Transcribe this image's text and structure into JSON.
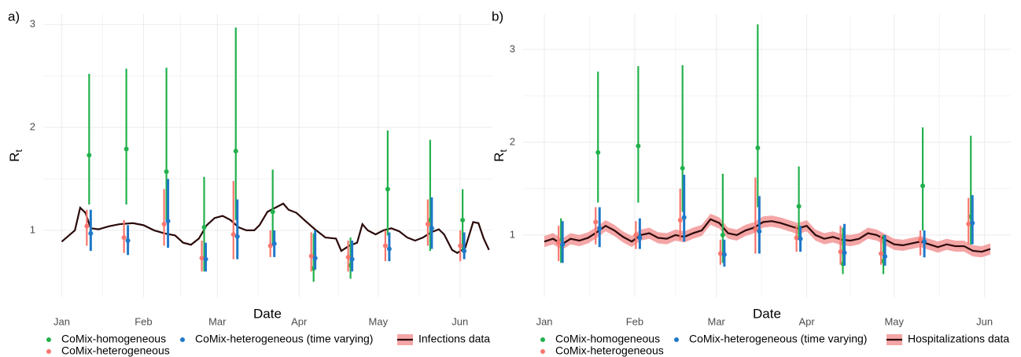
{
  "chart_data": [
    {
      "type": "errorbar",
      "label": "a)",
      "xlabel": "Date",
      "ylabel": {
        "base": "R",
        "sub": "t"
      },
      "xlim": [
        -7,
        163
      ],
      "ylim": [
        0.35,
        3.1
      ],
      "yticks": [
        1,
        2,
        3
      ],
      "xticks": [
        {
          "value": 0,
          "label": "Jan"
        },
        {
          "value": 31,
          "label": "Feb"
        },
        {
          "value": 59,
          "label": "Mar"
        },
        {
          "value": 90,
          "label": "Apr"
        },
        {
          "value": 120,
          "label": "May"
        },
        {
          "value": 151,
          "label": "Jun"
        }
      ],
      "grid": true,
      "x": [
        10.4,
        24.5,
        39.7,
        54,
        66,
        80,
        95.5,
        109.5,
        123.6,
        139.7,
        152
      ],
      "series": [
        {
          "name": "CoMix-homogeneous",
          "color": "#22b14c",
          "values": [
            1.73,
            1.79,
            1.57,
            1.03,
            1.77,
            1.18,
            0.63,
            0.66,
            1.4,
            1.1,
            1.1
          ],
          "lower": [
            1.25,
            1.25,
            1.1,
            0.6,
            1.1,
            0.85,
            0.5,
            0.53,
            0.95,
            0.8,
            0.8
          ],
          "upper": [
            2.52,
            2.57,
            2.58,
            1.52,
            2.97,
            1.59,
            0.97,
            0.93,
            1.97,
            1.88,
            1.4
          ]
        },
        {
          "name": "CoMix-heterogeneous",
          "color": "#f8766d",
          "values": [
            1.04,
            0.93,
            1.06,
            0.73,
            0.96,
            0.85,
            0.75,
            0.74,
            0.85,
            1.06,
            0.85
          ],
          "lower": [
            0.85,
            0.78,
            0.85,
            0.6,
            0.72,
            0.74,
            0.6,
            0.6,
            0.7,
            0.85,
            0.7
          ],
          "upper": [
            1.2,
            1.1,
            1.4,
            0.9,
            1.48,
            1.0,
            0.98,
            0.9,
            1.0,
            1.3,
            1.0
          ]
        },
        {
          "name": "CoMix-heterogeneous (time varying)",
          "color": "#1f78c8",
          "values": [
            0.97,
            0.9,
            1.09,
            0.72,
            0.94,
            0.87,
            0.73,
            0.72,
            0.82,
            1.02,
            0.8
          ],
          "lower": [
            0.8,
            0.76,
            0.83,
            0.6,
            0.72,
            0.74,
            0.62,
            0.6,
            0.7,
            0.82,
            0.72
          ],
          "upper": [
            1.2,
            1.05,
            1.5,
            0.88,
            1.3,
            1.0,
            1.0,
            0.9,
            0.98,
            1.32,
            0.98
          ]
        }
      ],
      "line": {
        "name": "Infections data",
        "color": "#2b0a0a",
        "band_color": "#f08080",
        "x": [
          0,
          5,
          7,
          9,
          11,
          14,
          18,
          22,
          27,
          31,
          35,
          39,
          43,
          46,
          49,
          52,
          55,
          58,
          61,
          64,
          67,
          70,
          73,
          75,
          78,
          81,
          84,
          86,
          89,
          92,
          96,
          100,
          104,
          106,
          109,
          112,
          114,
          116,
          119,
          122,
          125,
          128,
          131,
          134,
          137,
          140,
          143,
          145,
          148,
          150,
          153,
          156,
          158,
          160,
          162
        ],
        "values": [
          0.89,
          1.0,
          1.22,
          1.17,
          1.02,
          1.01,
          1.04,
          1.06,
          1.07,
          1.05,
          1.0,
          0.97,
          0.95,
          0.88,
          0.86,
          0.92,
          1.05,
          1.12,
          1.14,
          1.1,
          1.03,
          1.0,
          1.0,
          1.05,
          1.18,
          1.22,
          1.26,
          1.2,
          1.17,
          1.1,
          1.01,
          0.93,
          0.92,
          0.8,
          0.85,
          0.88,
          1.06,
          1.0,
          0.96,
          1.0,
          1.02,
          0.99,
          0.93,
          0.9,
          0.93,
          0.98,
          1.01,
          0.96,
          0.81,
          0.78,
          0.83,
          1.08,
          1.07,
          0.92,
          0.81
        ]
      }
    },
    {
      "type": "errorbar",
      "label": "b)",
      "xlabel": "Date",
      "ylabel": {
        "base": "R",
        "sub": "t"
      },
      "xlim": [
        -7.3,
        160
      ],
      "ylim": [
        0.33,
        3.38
      ],
      "yticks": [
        1,
        2,
        3
      ],
      "xticks": [
        {
          "value": 0,
          "label": "Jan"
        },
        {
          "value": 31,
          "label": "Feb"
        },
        {
          "value": 59,
          "label": "Mar"
        },
        {
          "value": 90,
          "label": "Apr"
        },
        {
          "value": 120,
          "label": "May"
        },
        {
          "value": 151,
          "label": "Jun"
        }
      ],
      "grid": true,
      "x": [
        5.7,
        18.4,
        32.2,
        47.4,
        61.2,
        73.2,
        87.3,
        102.4,
        116.3,
        129.8,
        146.3
      ],
      "series": [
        {
          "name": "CoMix-homogeneous",
          "color": "#22b14c",
          "values": [
            0.93,
            1.89,
            1.96,
            1.72,
            1.0,
            1.94,
            1.31,
            0.69,
            0.72,
            1.53,
            1.2
          ],
          "lower": [
            0.7,
            1.35,
            1.35,
            1.25,
            0.7,
            1.3,
            0.95,
            0.58,
            0.58,
            1.05,
            0.9
          ],
          "upper": [
            1.18,
            2.76,
            2.82,
            2.83,
            1.66,
            3.27,
            1.74,
            1.08,
            1.0,
            2.16,
            2.07
          ]
        },
        {
          "name": "CoMix-heterogeneous",
          "color": "#f8766d",
          "values": [
            0.92,
            1.14,
            1.0,
            1.16,
            0.8,
            1.06,
            0.97,
            0.82,
            0.8,
            0.95,
            1.12
          ],
          "lower": [
            0.72,
            0.9,
            0.85,
            0.95,
            0.68,
            0.8,
            0.82,
            0.68,
            0.68,
            0.78,
            0.9
          ],
          "upper": [
            1.1,
            1.3,
            1.15,
            1.5,
            0.95,
            1.62,
            1.1,
            1.1,
            1.0,
            1.05,
            1.4
          ]
        },
        {
          "name": "CoMix-heterogeneous (time varying)",
          "color": "#1f78c8",
          "values": [
            0.9,
            1.07,
            0.97,
            1.19,
            0.79,
            1.04,
            0.96,
            0.81,
            0.77,
            0.93,
            1.13
          ],
          "lower": [
            0.7,
            0.87,
            0.85,
            0.93,
            0.66,
            0.8,
            0.82,
            0.67,
            0.67,
            0.76,
            0.9
          ],
          "upper": [
            1.15,
            1.3,
            1.18,
            1.65,
            0.95,
            1.42,
            1.1,
            1.12,
            1.0,
            1.05,
            1.43
          ]
        }
      ],
      "line": {
        "name": "Hospitalizations data",
        "color": "#2b0a0a",
        "band_color": "#f08080",
        "x": [
          0,
          3,
          6,
          9,
          12,
          15,
          18,
          21,
          24,
          27,
          30,
          33,
          36,
          39,
          42,
          45,
          48,
          51,
          54,
          57,
          60,
          63,
          66,
          69,
          72,
          75,
          78,
          81,
          84,
          87,
          90,
          93,
          96,
          99,
          102,
          105,
          108,
          111,
          114,
          117,
          120,
          123,
          126,
          129,
          132,
          135,
          138,
          141,
          144,
          147,
          150,
          153
        ],
        "values": [
          0.93,
          0.96,
          0.9,
          0.96,
          0.94,
          0.97,
          1.03,
          1.1,
          1.05,
          0.98,
          0.93,
          1.0,
          1.02,
          0.97,
          0.96,
          1.0,
          0.98,
          1.02,
          1.05,
          1.17,
          1.13,
          1.02,
          1.0,
          1.05,
          1.08,
          1.14,
          1.15,
          1.13,
          1.1,
          1.07,
          1.1,
          1.0,
          0.96,
          0.98,
          0.95,
          0.94,
          0.96,
          1.02,
          1.0,
          0.95,
          0.9,
          0.89,
          0.91,
          0.93,
          0.9,
          0.87,
          0.9,
          0.88,
          0.88,
          0.83,
          0.82,
          0.85
        ],
        "lower": [
          0.87,
          0.9,
          0.84,
          0.9,
          0.88,
          0.91,
          0.97,
          1.04,
          0.99,
          0.92,
          0.87,
          0.94,
          0.96,
          0.91,
          0.9,
          0.94,
          0.92,
          0.96,
          0.99,
          1.11,
          1.07,
          0.96,
          0.94,
          0.99,
          1.02,
          1.08,
          1.09,
          1.07,
          1.04,
          1.01,
          1.04,
          0.94,
          0.9,
          0.92,
          0.89,
          0.88,
          0.9,
          0.96,
          0.94,
          0.89,
          0.84,
          0.83,
          0.85,
          0.87,
          0.84,
          0.81,
          0.84,
          0.82,
          0.82,
          0.77,
          0.76,
          0.79
        ],
        "upper": [
          0.99,
          1.02,
          0.96,
          1.02,
          1.0,
          1.03,
          1.09,
          1.16,
          1.11,
          1.04,
          0.99,
          1.06,
          1.08,
          1.03,
          1.02,
          1.06,
          1.04,
          1.08,
          1.11,
          1.23,
          1.19,
          1.08,
          1.06,
          1.11,
          1.14,
          1.2,
          1.21,
          1.19,
          1.16,
          1.13,
          1.16,
          1.06,
          1.02,
          1.04,
          1.01,
          1.0,
          1.02,
          1.08,
          1.06,
          1.01,
          0.96,
          0.95,
          0.97,
          0.99,
          0.96,
          0.93,
          0.96,
          0.94,
          0.94,
          0.89,
          0.88,
          0.91
        ]
      }
    }
  ]
}
